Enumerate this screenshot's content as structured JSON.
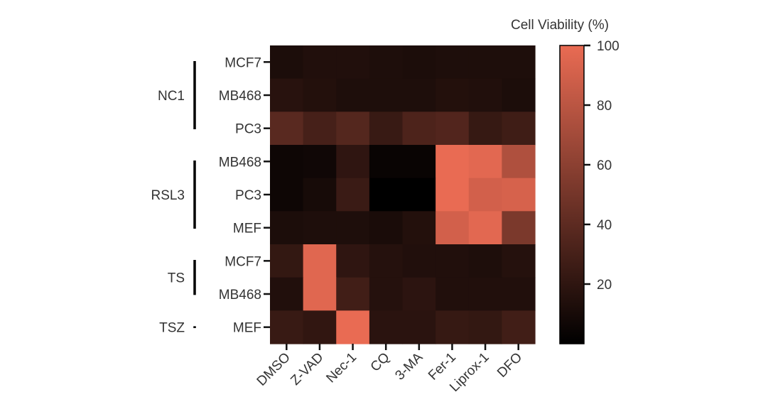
{
  "chart_data": {
    "type": "heatmap",
    "colorbar": {
      "title": "Cell Viability (%)",
      "range": [
        0,
        100
      ],
      "ticks": [
        20,
        40,
        60,
        80,
        100
      ],
      "low_color": "#000000",
      "high_color": "#e96b53"
    },
    "columns": [
      "DMSO",
      "Z-VAD",
      "Nec-1",
      "CQ",
      "3-MA",
      "Fer-1",
      "Liprox-1",
      "DFO"
    ],
    "groups": [
      {
        "name": "NC1",
        "rows": [
          "MCF7",
          "MB468",
          "PC3"
        ]
      },
      {
        "name": "RSL3",
        "rows": [
          "MB468",
          "PC3",
          "MEF"
        ]
      },
      {
        "name": "TS",
        "rows": [
          "MCF7",
          "MB468"
        ]
      },
      {
        "name": "TSZ",
        "rows": [
          "MEF"
        ]
      }
    ],
    "values": [
      [
        12,
        14,
        14,
        13,
        12,
        13,
        13,
        13
      ],
      [
        17,
        15,
        13,
        13,
        13,
        15,
        14,
        12
      ],
      [
        38,
        30,
        36,
        24,
        33,
        35,
        23,
        27
      ],
      [
        6,
        7,
        20,
        4,
        4,
        100,
        97,
        75
      ],
      [
        6,
        10,
        25,
        0,
        0,
        100,
        90,
        92
      ],
      [
        12,
        13,
        13,
        11,
        15,
        90,
        97,
        53
      ],
      [
        22,
        96,
        20,
        16,
        14,
        14,
        13,
        16
      ],
      [
        14,
        96,
        28,
        16,
        19,
        14,
        14,
        14
      ],
      [
        24,
        21,
        100,
        18,
        18,
        23,
        22,
        28
      ]
    ]
  }
}
